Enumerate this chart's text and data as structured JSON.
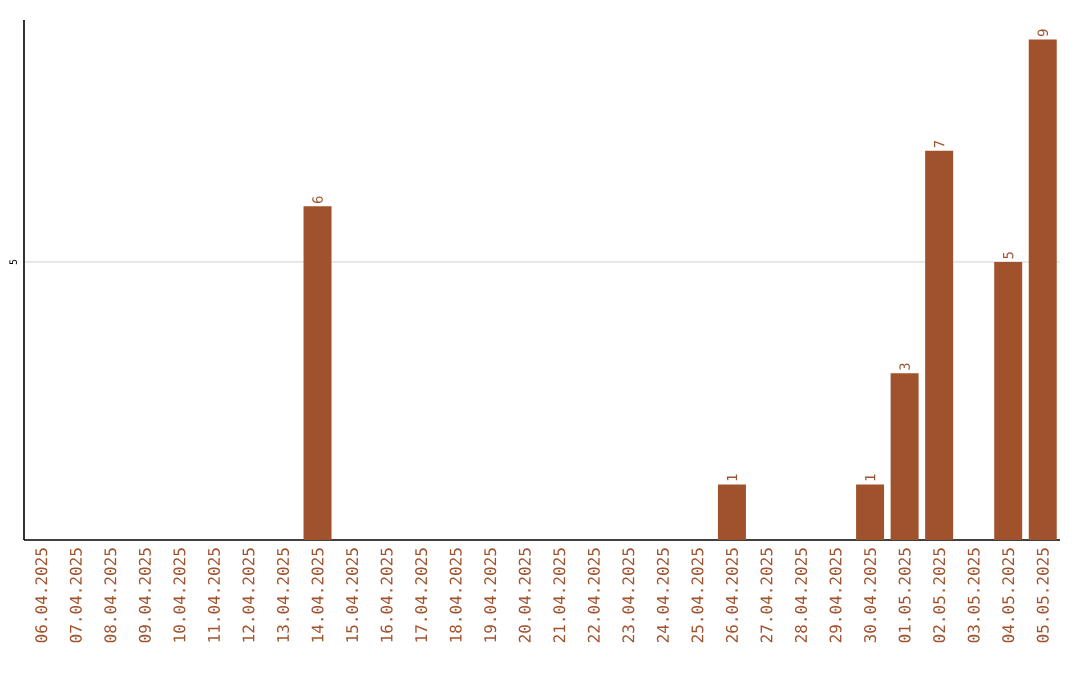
{
  "chart_data": {
    "type": "bar",
    "categories": [
      "06.04.2025",
      "07.04.2025",
      "08.04.2025",
      "09.04.2025",
      "10.04.2025",
      "11.04.2025",
      "12.04.2025",
      "13.04.2025",
      "14.04.2025",
      "15.04.2025",
      "16.04.2025",
      "17.04.2025",
      "18.04.2025",
      "19.04.2025",
      "20.04.2025",
      "21.04.2025",
      "22.04.2025",
      "23.04.2025",
      "24.04.2025",
      "25.04.2025",
      "26.04.2025",
      "27.04.2025",
      "28.04.2025",
      "29.04.2025",
      "30.04.2025",
      "01.05.2025",
      "02.05.2025",
      "03.05.2025",
      "04.05.2025",
      "05.05.2025"
    ],
    "values": [
      0,
      0,
      0,
      0,
      0,
      0,
      0,
      0,
      6,
      0,
      0,
      0,
      0,
      0,
      0,
      0,
      0,
      0,
      0,
      0,
      1,
      0,
      0,
      0,
      1,
      3,
      7,
      0,
      5,
      9
    ],
    "value_labels": [
      null,
      null,
      null,
      null,
      null,
      null,
      null,
      null,
      "6",
      null,
      null,
      null,
      null,
      null,
      null,
      null,
      null,
      null,
      null,
      null,
      "1",
      null,
      null,
      null,
      "1",
      "3",
      "7",
      null,
      "5",
      "9"
    ],
    "color": "#a0522d",
    "ylim": [
      0,
      9.35
    ],
    "yticks": [
      5
    ],
    "grid": "y"
  }
}
